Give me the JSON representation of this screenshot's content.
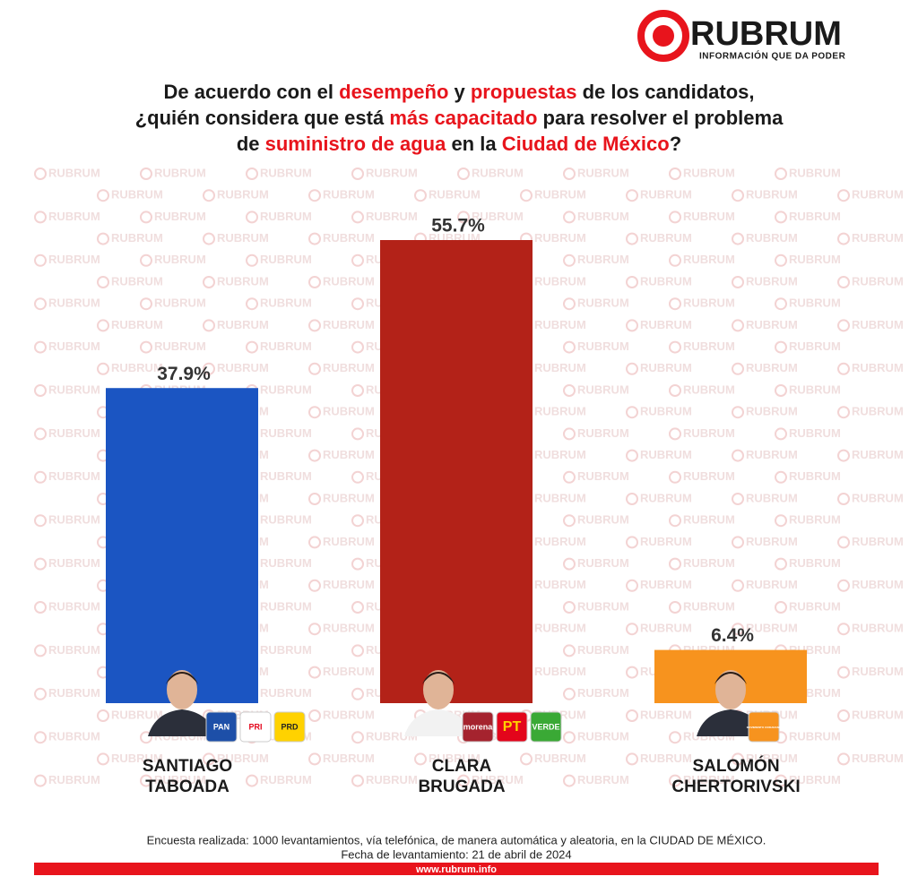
{
  "brand": {
    "name": "RUBRUM",
    "tagline": "INFORMACIÓN QUE DA PODER",
    "watermark": "RUBRUM",
    "url": "www.rubrum.info"
  },
  "chart_data": {
    "type": "bar",
    "title_lines": [
      [
        {
          "text": "De acuerdo con el ",
          "highlight": false
        },
        {
          "text": "desempeño",
          "highlight": true
        },
        {
          "text": " y ",
          "highlight": false
        },
        {
          "text": "propuestas",
          "highlight": true
        },
        {
          "text": " de los candidatos,",
          "highlight": false
        }
      ],
      [
        {
          "text": "¿quién considera que está ",
          "highlight": false
        },
        {
          "text": "más capacitado",
          "highlight": true
        },
        {
          "text": " para resolver el problema",
          "highlight": false
        }
      ],
      [
        {
          "text": "de ",
          "highlight": false
        },
        {
          "text": "suministro de agua",
          "highlight": true
        },
        {
          "text": " en la ",
          "highlight": false
        },
        {
          "text": "Ciudad de México",
          "highlight": true
        },
        {
          "text": "?",
          "highlight": false
        }
      ]
    ],
    "categories": [
      "SANTIAGO TABOADA",
      "CLARA BRUGADA",
      "SALOMÓN CHERTORIVSKI"
    ],
    "values": [
      37.9,
      55.7,
      6.4
    ],
    "value_labels": [
      "37.9%",
      "55.7%",
      "6.4%"
    ],
    "colors": [
      "#1b55c2",
      "#b32218",
      "#f7931e"
    ],
    "parties": [
      [
        "PAN",
        "PRI",
        "PRD"
      ],
      [
        "morena",
        "PT",
        "VERDE"
      ],
      [
        "MOVIMIENTO CIUDADANO"
      ]
    ],
    "notes": [
      "Encuesta realizada: 1000 levantamientos, vía telefónica, de manera automática y aleatoria, en la CIUDAD DE MÉXICO.",
      "Fecha de levantamiento: 21 de abril de 2024"
    ]
  }
}
